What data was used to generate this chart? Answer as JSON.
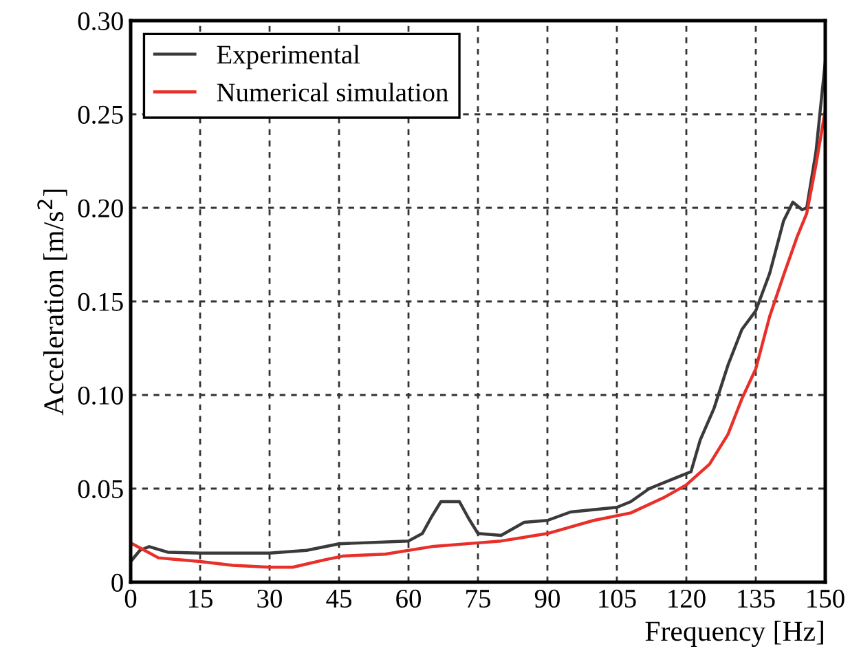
{
  "chart_data": {
    "type": "line",
    "xlabel": "Frequency [Hz]",
    "ylabel": "Acceleration [m/s$^{2}$]",
    "xlim": [
      0,
      150
    ],
    "xticks": [
      0,
      15,
      30,
      45,
      60,
      75,
      90,
      105,
      120,
      135,
      150
    ],
    "ylim": [
      0,
      0.3
    ],
    "yticks": [
      0,
      0.05,
      {
        "value": 0.1,
        "label": "0.10"
      },
      0.15,
      {
        "value": 0.2,
        "label": "0.20"
      },
      0.25,
      {
        "value": 0.3,
        "label": "0.30"
      }
    ],
    "grid": true,
    "legend": "top left",
    "line_style": "solid",
    "marker": "none",
    "series": [
      {
        "name": "Experimental",
        "color": "#3a3a3a",
        "x": [
          0,
          2,
          4,
          8,
          15,
          30,
          38,
          45,
          60,
          63,
          65,
          67,
          71,
          73,
          75,
          80,
          85,
          90,
          95,
          105,
          108,
          112,
          118,
          121,
          123,
          126,
          129,
          132,
          135,
          138,
          141,
          143,
          145,
          146,
          148,
          150
        ],
        "values": [
          0.011,
          0.017,
          0.019,
          0.016,
          0.0155,
          0.0155,
          0.017,
          0.0205,
          0.022,
          0.026,
          0.035,
          0.043,
          0.043,
          0.034,
          0.026,
          0.025,
          0.032,
          0.033,
          0.0375,
          0.04,
          0.043,
          0.05,
          0.056,
          0.059,
          0.076,
          0.093,
          0.116,
          0.135,
          0.145,
          0.165,
          0.193,
          0.203,
          0.199,
          0.2,
          0.23,
          0.278
        ]
      },
      {
        "name": "Numerical simulation",
        "color": "#e8302a",
        "x": [
          0,
          3,
          6,
          15,
          22,
          30,
          35,
          42,
          46,
          55,
          65,
          75,
          80,
          90,
          100,
          108,
          115,
          120,
          125,
          129,
          132,
          135,
          138,
          141,
          144,
          146,
          148,
          150
        ],
        "values": [
          0.021,
          0.017,
          0.013,
          0.011,
          0.009,
          0.008,
          0.008,
          0.012,
          0.014,
          0.015,
          0.019,
          0.021,
          0.022,
          0.026,
          0.033,
          0.037,
          0.045,
          0.052,
          0.063,
          0.079,
          0.098,
          0.114,
          0.142,
          0.164,
          0.185,
          0.197,
          0.223,
          0.252
        ]
      }
    ]
  }
}
